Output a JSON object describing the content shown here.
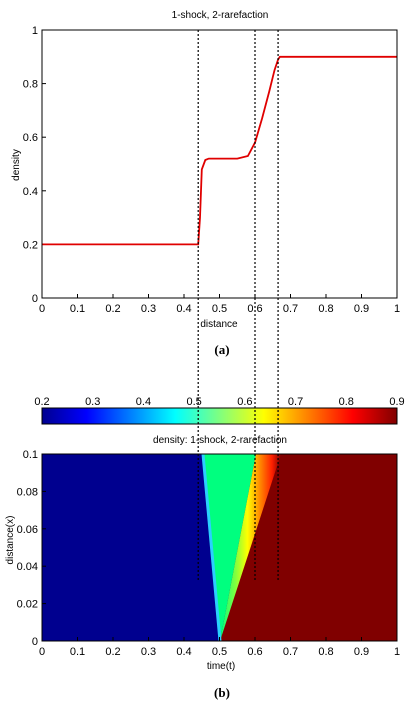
{
  "chart_data": [
    {
      "type": "line",
      "title": "1-shock, 2-rarefaction",
      "xlabel": "distance",
      "ylabel": "density",
      "xlim": [
        0,
        1
      ],
      "ylim": [
        0,
        1
      ],
      "xticks": [
        "0",
        "0.1",
        "0.2",
        "0.3",
        "0.4",
        "0.5",
        "0.6",
        "0.7",
        "0.8",
        "0.9",
        "1"
      ],
      "yticks": [
        "0",
        "0.2",
        "0.4",
        "0.6",
        "0.8",
        "1"
      ],
      "grid": false,
      "series": [
        {
          "color": "#e00000",
          "x": [
            0,
            0.43,
            0.44,
            0.445,
            0.45,
            0.46,
            0.47,
            0.5,
            0.55,
            0.58,
            0.6,
            0.62,
            0.64,
            0.655,
            0.665,
            0.67,
            0.7,
            0.8,
            0.9,
            1.0
          ],
          "y": [
            0.2,
            0.2,
            0.2,
            0.3,
            0.48,
            0.515,
            0.52,
            0.52,
            0.52,
            0.53,
            0.58,
            0.67,
            0.77,
            0.85,
            0.89,
            0.9,
            0.9,
            0.9,
            0.9,
            0.9
          ]
        }
      ],
      "vlines": [
        0.44,
        0.6,
        0.665
      ],
      "caption": "(a)"
    },
    {
      "type": "heatmap",
      "title": "density: 1-shock, 2-rarefaction",
      "xlabel": "time(t)",
      "ylabel": "distance(x)",
      "xlim": [
        0,
        1
      ],
      "ylim": [
        0,
        0.1
      ],
      "xticks": [
        "0",
        "0.1",
        "0.2",
        "0.3",
        "0.4",
        "0.5",
        "0.6",
        "0.7",
        "0.8",
        "0.9",
        "1"
      ],
      "yticks": [
        "0",
        "0.02",
        "0.04",
        "0.06",
        "0.08",
        "0.1"
      ],
      "colorbar": {
        "colormap": "jet",
        "range": [
          0.2,
          0.9
        ],
        "ticks": [
          "0.2",
          "0.3",
          "0.4",
          "0.5",
          "0.6",
          "0.7",
          "0.8",
          "0.9"
        ]
      },
      "left_state": 0.2,
      "middle_state": 0.52,
      "right_state": 0.9,
      "origin": [
        0.5,
        0
      ],
      "shock_top_x": 0.45,
      "rarefaction_head_top_x": 0.6,
      "rarefaction_tail_top_x": 0.65,
      "vlines": [
        0.44,
        0.6,
        0.665
      ],
      "caption": "(b)"
    }
  ]
}
